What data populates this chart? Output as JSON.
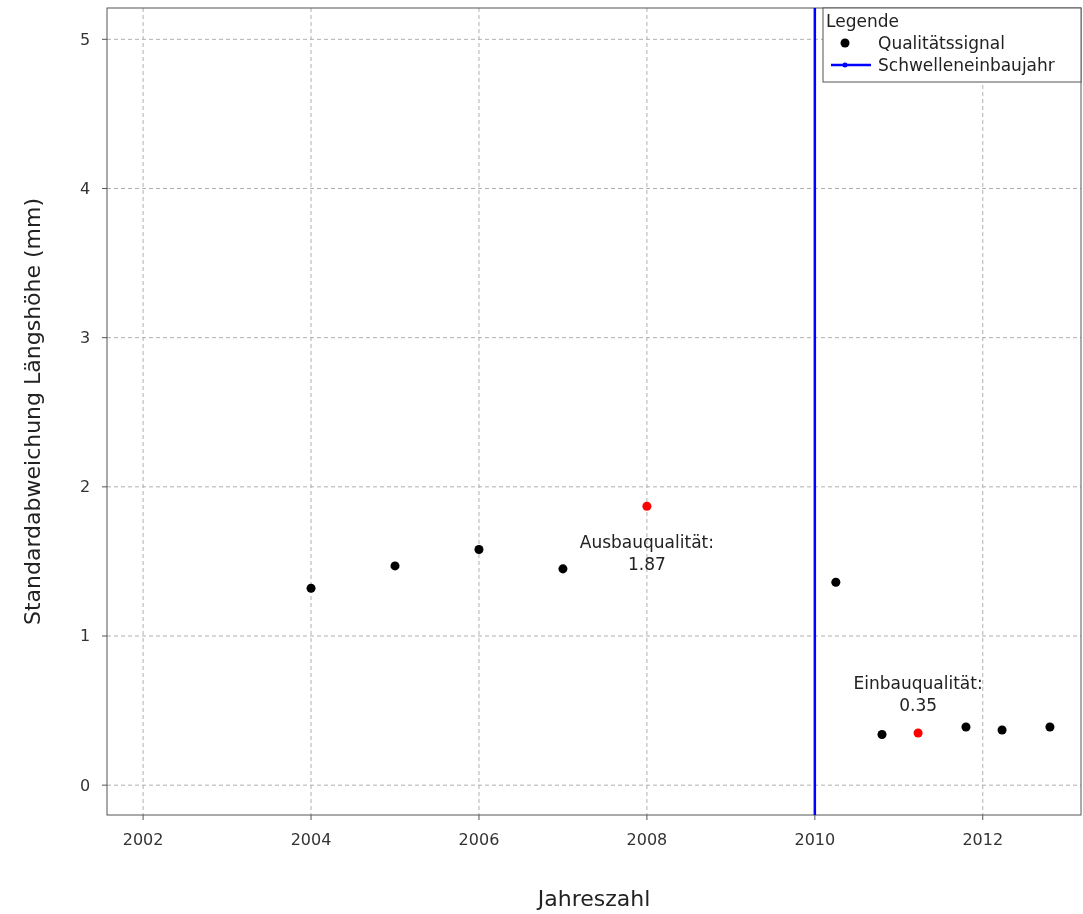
{
  "chart_data": {
    "type": "scatter",
    "xlabel": "Jahreszahl",
    "ylabel": "Standardabweichung Längshöhe (mm)",
    "legend_title": "Legende",
    "xlim": [
      2001.57,
      2013.17
    ],
    "xticks": [
      2002,
      2004,
      2006,
      2008,
      2010,
      2012
    ],
    "ylim": [
      -0.2,
      5.21
    ],
    "yticks": [
      0,
      1,
      2,
      3,
      4,
      5
    ],
    "series": [
      {
        "name": "Qualitätssignal",
        "color": "#000000",
        "marker": "circle",
        "x": [
          2004,
          2005,
          2006,
          2007,
          2008,
          2010.25,
          2010.8,
          2011.23,
          2011.8,
          2012.23,
          2012.8
        ],
        "values": [
          1.32,
          1.47,
          1.58,
          1.45,
          1.87,
          1.36,
          0.34,
          0.35,
          0.39,
          0.37,
          0.39
        ],
        "colors": [
          "#000000",
          "#000000",
          "#000000",
          "#000000",
          "#ff0000",
          "#000000",
          "#000000",
          "#ff0000",
          "#000000",
          "#000000",
          "#000000"
        ]
      },
      {
        "type": "line",
        "name": "Schwelleneinbaujahr",
        "color": "#0000ff",
        "x": [
          2010,
          2010
        ],
        "values": [
          -0.2,
          5.21
        ]
      }
    ],
    "annotations": [
      {
        "text": "Ausbauqualität:\n1.87",
        "x": 2008,
        "y": 1.87
      },
      {
        "text": "Einbauqualität:\n0.35",
        "x": 2011.23,
        "y": 0.35
      }
    ],
    "grid": true,
    "legend": "top right"
  }
}
